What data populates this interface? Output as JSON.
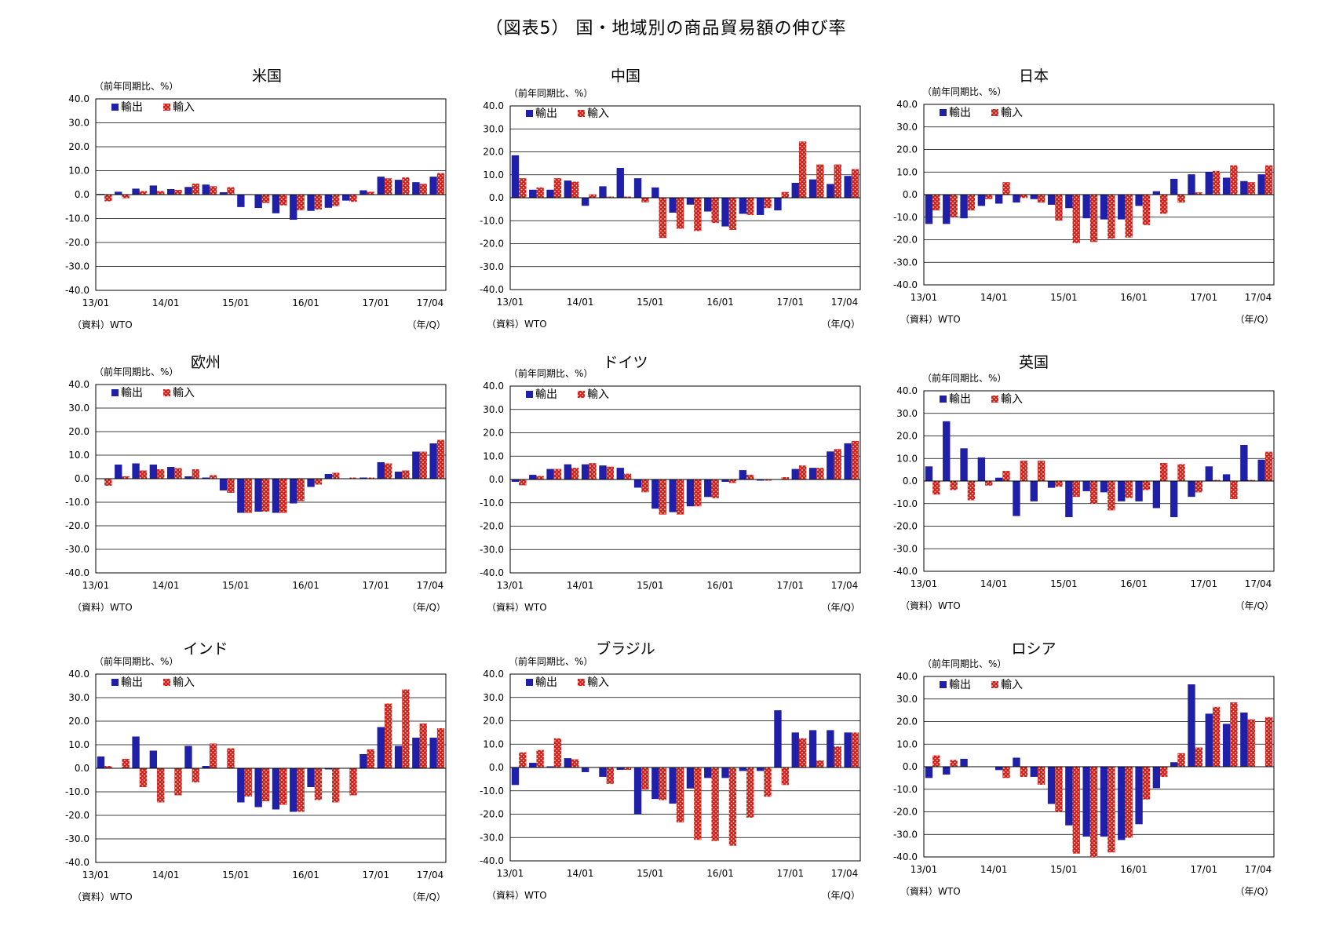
{
  "page": {
    "title": "（図表5） 国・地域別の商品貿易額の伸び率"
  },
  "common": {
    "unit_label": "（前年同期比、%）",
    "source": "（資料）WTO",
    "xaxis_label": "（年/Q）",
    "legend": [
      "輸出",
      "輸入"
    ],
    "export_color": "#1f1fa8",
    "import_color": "#cc2020",
    "yticks": [
      "40.0",
      "30.0",
      "20.0",
      "10.0",
      "0.0",
      "-10.0",
      "-20.0",
      "-30.0",
      "-40.0"
    ],
    "xticks": [
      "13/01",
      "14/01",
      "15/01",
      "16/01",
      "17/01",
      "17/04"
    ]
  },
  "chart_data": [
    {
      "type": "bar",
      "title": "米国",
      "ylabel": "（前年同期比、%）",
      "ylim": [
        -40,
        40
      ],
      "categories": [
        "13/01",
        "13/02",
        "13/03",
        "13/04",
        "14/01",
        "14/02",
        "14/03",
        "14/04",
        "15/01",
        "15/02",
        "15/03",
        "15/04",
        "16/01",
        "16/02",
        "16/03",
        "16/04",
        "17/01",
        "17/02",
        "17/03",
        "17/04"
      ],
      "series": [
        {
          "name": "輸出",
          "values": [
            0.3,
            1.2,
            2.5,
            3.8,
            2.3,
            3.2,
            4.2,
            1.0,
            -5.2,
            -5.6,
            -7.8,
            -10.5,
            -6.8,
            -5.5,
            -2.5,
            1.8,
            7.5,
            6.2,
            5.2,
            7.5
          ]
        },
        {
          "name": "輸入",
          "values": [
            -2.8,
            -1.5,
            1.5,
            1.5,
            2.0,
            4.6,
            3.5,
            3.1,
            0.2,
            -3.5,
            -4.5,
            -6.5,
            -6.2,
            -4.8,
            -3.0,
            1.2,
            6.8,
            7.2,
            4.5,
            9.0
          ]
        }
      ]
    },
    {
      "type": "bar",
      "title": "中国",
      "ylabel": "（前年同期比、%）",
      "ylim": [
        -40,
        40
      ],
      "categories": [
        "13/01",
        "13/02",
        "13/03",
        "13/04",
        "14/01",
        "14/02",
        "14/03",
        "14/04",
        "15/01",
        "15/02",
        "15/03",
        "15/04",
        "16/01",
        "16/02",
        "16/03",
        "16/04",
        "17/01",
        "17/02",
        "17/03",
        "17/04"
      ],
      "series": [
        {
          "name": "輸出",
          "values": [
            18.5,
            3.5,
            3.5,
            7.5,
            -3.5,
            5.0,
            13.0,
            8.5,
            4.5,
            -6.5,
            -3.0,
            -6.0,
            -12.5,
            -7.0,
            -7.5,
            -5.5,
            6.5,
            8.0,
            6.0,
            9.5
          ]
        },
        {
          "name": "輸入",
          "values": [
            8.5,
            4.5,
            8.5,
            7.0,
            1.5,
            0.5,
            0.5,
            -2.0,
            -17.5,
            -13.5,
            -14.5,
            -11.0,
            -14.0,
            -7.5,
            -4.5,
            2.5,
            24.5,
            14.5,
            14.5,
            12.5
          ]
        }
      ]
    },
    {
      "type": "bar",
      "title": "日本",
      "ylabel": "（前年同期比、%）",
      "ylim": [
        -40,
        40
      ],
      "categories": [
        "13/01",
        "13/02",
        "13/03",
        "13/04",
        "14/01",
        "14/02",
        "14/03",
        "14/04",
        "15/01",
        "15/02",
        "15/03",
        "15/04",
        "16/01",
        "16/02",
        "16/03",
        "16/04",
        "17/01",
        "17/02",
        "17/03",
        "17/04"
      ],
      "series": [
        {
          "name": "輸出",
          "values": [
            -13.0,
            -13.0,
            -10.5,
            -5.0,
            -4.0,
            -3.5,
            -2.0,
            -4.5,
            -6.0,
            -10.5,
            -11.0,
            -11.0,
            -5.0,
            1.5,
            7.0,
            9.0,
            10.0,
            7.5,
            6.0,
            9.0
          ]
        },
        {
          "name": "輸入",
          "values": [
            -7.0,
            -10.0,
            -7.0,
            -2.0,
            5.5,
            -1.5,
            -3.5,
            -11.5,
            -21.5,
            -21.0,
            -19.5,
            -19.0,
            -13.5,
            -8.5,
            -3.5,
            1.0,
            10.5,
            13.0,
            5.5,
            13.0
          ]
        }
      ]
    },
    {
      "type": "bar",
      "title": "欧州",
      "ylabel": "（前年同期比、%）",
      "ylim": [
        -40,
        40
      ],
      "categories": [
        "13/01",
        "13/02",
        "13/03",
        "13/04",
        "14/01",
        "14/02",
        "14/03",
        "14/04",
        "15/01",
        "15/02",
        "15/03",
        "15/04",
        "16/01",
        "16/02",
        "16/03",
        "16/04",
        "17/01",
        "17/02",
        "17/03",
        "17/04"
      ],
      "series": [
        {
          "name": "輸出",
          "values": [
            0.0,
            6.0,
            6.5,
            6.0,
            5.0,
            1.0,
            0.5,
            -5.0,
            -14.5,
            -14.0,
            -14.5,
            -10.5,
            -3.5,
            2.0,
            0.0,
            0.5,
            7.0,
            3.0,
            11.5,
            15.0
          ]
        },
        {
          "name": "輸入",
          "values": [
            -3.0,
            1.0,
            3.5,
            4.0,
            4.5,
            4.0,
            1.5,
            -6.0,
            -14.5,
            -14.0,
            -14.5,
            -9.5,
            -2.5,
            2.5,
            0.5,
            0.5,
            6.5,
            3.5,
            11.5,
            16.5
          ]
        }
      ]
    },
    {
      "type": "bar",
      "title": "ドイツ",
      "ylabel": "（前年同期比、%）",
      "ylim": [
        -40,
        40
      ],
      "categories": [
        "13/01",
        "13/02",
        "13/03",
        "13/04",
        "14/01",
        "14/02",
        "14/03",
        "14/04",
        "15/01",
        "15/02",
        "15/03",
        "15/04",
        "16/01",
        "16/02",
        "16/03",
        "16/04",
        "17/01",
        "17/02",
        "17/03",
        "17/04"
      ],
      "series": [
        {
          "name": "輸出",
          "values": [
            -1.0,
            2.0,
            4.5,
            6.5,
            6.5,
            6.0,
            5.0,
            -3.5,
            -12.5,
            -14.0,
            -11.5,
            -7.5,
            -1.0,
            4.0,
            -0.5,
            0.0,
            4.5,
            5.0,
            12.0,
            15.5
          ]
        },
        {
          "name": "輸入",
          "values": [
            -2.5,
            1.5,
            4.5,
            5.0,
            7.0,
            5.5,
            2.5,
            -5.5,
            -15.0,
            -15.0,
            -11.5,
            -8.0,
            -1.5,
            2.0,
            -0.5,
            1.0,
            6.0,
            5.0,
            13.0,
            16.5
          ]
        }
      ]
    },
    {
      "type": "bar",
      "title": "英国",
      "ylabel": "（前年同期比、%）",
      "ylim": [
        -40,
        40
      ],
      "categories": [
        "13/01",
        "13/02",
        "13/03",
        "13/04",
        "14/01",
        "14/02",
        "14/03",
        "14/04",
        "15/01",
        "15/02",
        "15/03",
        "15/04",
        "16/01",
        "16/02",
        "16/03",
        "16/04",
        "17/01",
        "17/02",
        "17/03",
        "17/04"
      ],
      "series": [
        {
          "name": "輸出",
          "values": [
            6.5,
            26.5,
            14.5,
            10.5,
            1.5,
            -15.5,
            -9.0,
            -3.0,
            -16.0,
            -4.5,
            -5.0,
            -9.0,
            -9.0,
            -12.0,
            -16.0,
            -7.0,
            6.5,
            3.0,
            16.0,
            9.5
          ]
        },
        {
          "name": "輸入",
          "values": [
            -6.0,
            -4.0,
            -8.5,
            -2.0,
            4.5,
            9.0,
            9.0,
            -2.5,
            -7.0,
            -10.0,
            -13.0,
            -7.5,
            -4.0,
            8.0,
            7.5,
            -5.0,
            0.5,
            -8.0,
            0.5,
            13.0
          ]
        }
      ]
    },
    {
      "type": "bar",
      "title": "インド",
      "ylabel": "（前年同期比、%）",
      "ylim": [
        -40,
        40
      ],
      "categories": [
        "13/01",
        "13/02",
        "13/03",
        "13/04",
        "14/01",
        "14/02",
        "14/03",
        "14/04",
        "15/01",
        "15/02",
        "15/03",
        "15/04",
        "16/01",
        "16/02",
        "16/03",
        "16/04",
        "17/01",
        "17/02",
        "17/03",
        "17/04"
      ],
      "series": [
        {
          "name": "輸出",
          "values": [
            5.0,
            0.0,
            13.5,
            7.5,
            0.0,
            9.5,
            1.0,
            0.0,
            -14.5,
            -16.5,
            -17.5,
            -18.5,
            -8.0,
            -0.5,
            0.0,
            6.0,
            17.5,
            9.5,
            13.0,
            13.0
          ]
        },
        {
          "name": "輸入",
          "values": [
            1.0,
            4.0,
            -8.0,
            -14.5,
            -11.5,
            -6.0,
            10.5,
            8.5,
            -12.0,
            -14.0,
            -15.5,
            -18.5,
            -13.5,
            -14.5,
            -11.5,
            8.0,
            27.5,
            33.5,
            19.0,
            17.0
          ]
        }
      ]
    },
    {
      "type": "bar",
      "title": "ブラジル",
      "ylabel": "（前年同期比、%）",
      "ylim": [
        -40,
        40
      ],
      "categories": [
        "13/01",
        "13/02",
        "13/03",
        "13/04",
        "14/01",
        "14/02",
        "14/03",
        "14/04",
        "15/01",
        "15/02",
        "15/03",
        "15/04",
        "16/01",
        "16/02",
        "16/03",
        "16/04",
        "17/01",
        "17/02",
        "17/03",
        "17/04"
      ],
      "series": [
        {
          "name": "輸出",
          "values": [
            -7.5,
            2.0,
            0.5,
            4.0,
            -2.0,
            -4.0,
            -1.0,
            -20.0,
            -13.5,
            -15.5,
            -9.0,
            -4.5,
            -4.5,
            -1.5,
            -1.5,
            24.5,
            15.0,
            16.0,
            16.0,
            15.0
          ]
        },
        {
          "name": "輸入",
          "values": [
            6.5,
            7.5,
            12.5,
            3.5,
            0.0,
            -7.0,
            -1.0,
            -9.5,
            -14.0,
            -23.5,
            -31.0,
            -31.5,
            -33.5,
            -21.5,
            -12.5,
            -7.5,
            12.5,
            3.0,
            9.0,
            15.0
          ]
        }
      ]
    },
    {
      "type": "bar",
      "title": "ロシア",
      "ylabel": "（前年同期比、%）",
      "ylim": [
        -40,
        40
      ],
      "categories": [
        "13/01",
        "13/02",
        "13/03",
        "13/04",
        "14/01",
        "14/02",
        "14/03",
        "14/04",
        "15/01",
        "15/02",
        "15/03",
        "15/04",
        "16/01",
        "16/02",
        "16/03",
        "16/04",
        "17/01",
        "17/02",
        "17/03",
        "17/04"
      ],
      "series": [
        {
          "name": "輸出",
          "values": [
            -5.0,
            -3.5,
            3.5,
            0.0,
            -1.5,
            4.0,
            -4.5,
            -16.5,
            -26.0,
            -31.0,
            -31.0,
            -32.5,
            -25.5,
            -9.5,
            2.0,
            36.5,
            23.5,
            19.0,
            24.0,
            0.0
          ]
        },
        {
          "name": "輸入",
          "values": [
            5.0,
            3.0,
            0.0,
            0.0,
            -5.0,
            -4.5,
            -8.0,
            -20.0,
            -38.5,
            -40.0,
            -38.0,
            -31.5,
            -14.5,
            -4.5,
            6.0,
            8.5,
            26.5,
            28.5,
            21.0,
            22.0
          ]
        }
      ]
    }
  ]
}
